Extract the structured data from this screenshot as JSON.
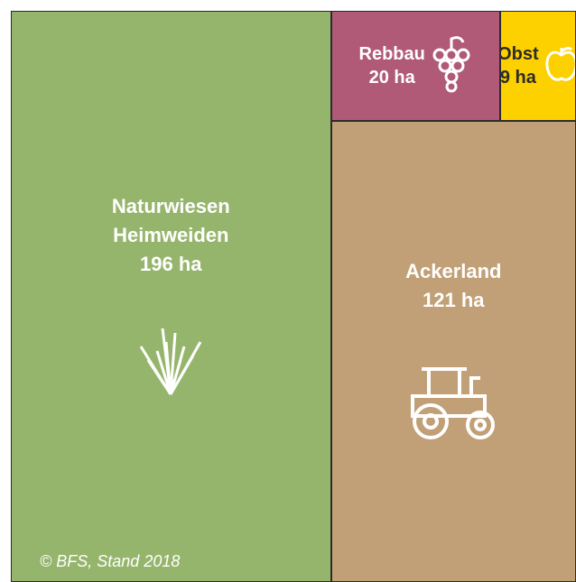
{
  "chart_data": {
    "type": "treemap",
    "categories": [
      "Naturwiesen Heimweiden",
      "Ackerland",
      "Rebbau",
      "Obst"
    ],
    "values": [
      196,
      121,
      20,
      9
    ],
    "value_labels": [
      "196 ha",
      "121 ha",
      "20 ha",
      "9 ha"
    ],
    "colors": [
      "#96b56c",
      "#c2a077",
      "#b05a78",
      "#fdd000"
    ],
    "label_colors": [
      "#ffffff",
      "#ffffff",
      "#ffffff",
      "#2b2b2b"
    ],
    "source": "© BFS, Stand 2018"
  }
}
